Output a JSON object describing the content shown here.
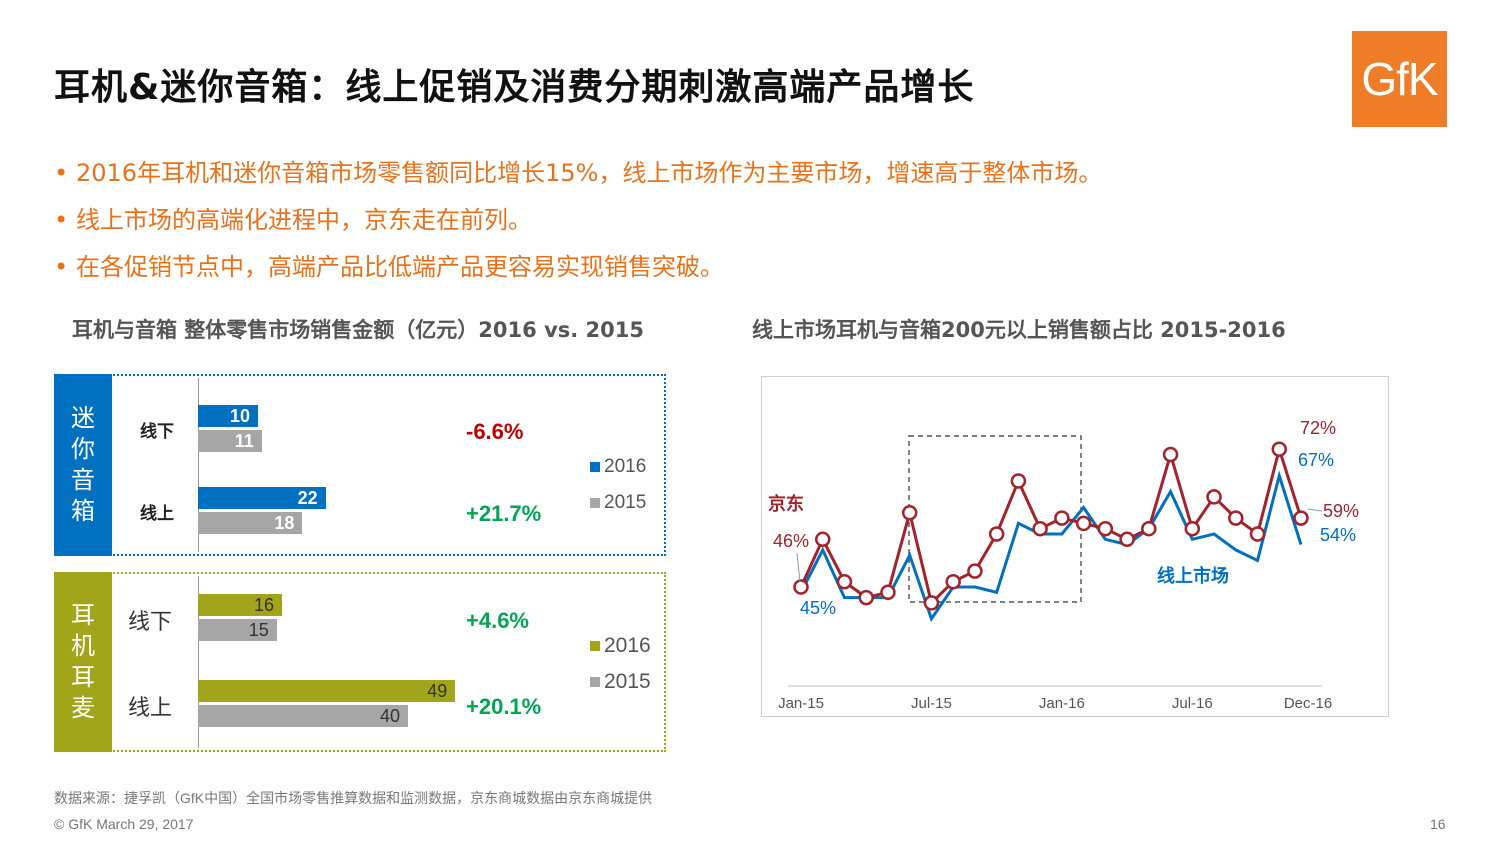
{
  "title": "耳机&迷你音箱：线上促销及消费分期刺激高端产品增长",
  "logo": "GfK",
  "bullets": [
    "2016年耳机和迷你音箱市场零售额同比增长15%，线上市场作为主要市场，增速高于整体市场。",
    "线上市场的高端化进程中，京东走在前列。",
    "在各促销节点中，高端产品比低端产品更容易实现销售突破。"
  ],
  "bullet_mark": "•",
  "colors": {
    "accent_orange": "#e8721a",
    "blue": "#0070c0",
    "olive": "#a2a51a",
    "gray": "#a6a6a6",
    "red": "#c00000",
    "green": "#00a651",
    "maroon": "#a3232d"
  },
  "chart_data": [
    {
      "type": "bar",
      "title": "耳机与音箱 整体零售市场销售金额（亿元）2016 vs. 2015",
      "xlabel": "",
      "ylabel": "",
      "groups": [
        {
          "label": "迷你音箱",
          "categories": [
            "线下",
            "线上"
          ],
          "series": [
            {
              "name": "2016",
              "values": [
                10,
                22
              ]
            },
            {
              "name": "2015",
              "values": [
                11,
                18
              ]
            }
          ],
          "growth": [
            "-6.6%",
            "+21.7%"
          ]
        },
        {
          "label": "耳机耳麦",
          "categories": [
            "线下",
            "线上"
          ],
          "series": [
            {
              "name": "2016",
              "values": [
                16,
                49
              ]
            },
            {
              "name": "2015",
              "values": [
                15,
                40
              ]
            }
          ],
          "growth": [
            "+4.6%",
            "+20.1%"
          ]
        }
      ]
    },
    {
      "type": "line",
      "title": "线上市场耳机与音箱200元以上销售额占比 2015-2016",
      "x": [
        "Jan-15",
        "Feb-15",
        "Mar-15",
        "Apr-15",
        "May-15",
        "Jun-15",
        "Jul-15",
        "Aug-15",
        "Sep-15",
        "Oct-15",
        "Nov-15",
        "Dec-15",
        "Jan-16",
        "Feb-16",
        "Mar-16",
        "Apr-16",
        "May-16",
        "Jun-16",
        "Jul-16",
        "Aug-16",
        "Sep-16",
        "Oct-16",
        "Nov-16",
        "Dec-16"
      ],
      "x_tick_labels": [
        "Jan-15",
        "Jul-15",
        "Jan-16",
        "Jul-16",
        "Dec-16"
      ],
      "y_unit": "%",
      "ylim": [
        20,
        80
      ],
      "series": [
        {
          "name": "京东",
          "values": [
            46,
            55,
            47,
            44,
            45,
            60,
            43,
            47,
            49,
            56,
            66,
            57,
            59,
            58,
            57,
            55,
            57,
            71,
            57,
            63,
            59,
            56,
            72,
            59
          ]
        },
        {
          "name": "线上市场",
          "values": [
            45,
            53,
            44,
            44,
            44,
            52,
            40,
            46,
            46,
            45,
            58,
            56,
            56,
            61,
            55,
            54,
            57,
            64,
            55,
            56,
            53,
            51,
            67,
            54
          ]
        }
      ],
      "annotations": [
        "46%",
        "45%",
        "72%",
        "67%",
        "59%",
        "54%"
      ],
      "highlight": "dashed box Jul-15 to Jan-16",
      "grid": false
    }
  ],
  "footer": {
    "source": "数据来源：捷孚凯（GfK中国）全国市场零售推算数据和监测数据，京东商城数据由京东商城提供",
    "copyright": "© GfK March 29, 2017",
    "page": "16"
  }
}
